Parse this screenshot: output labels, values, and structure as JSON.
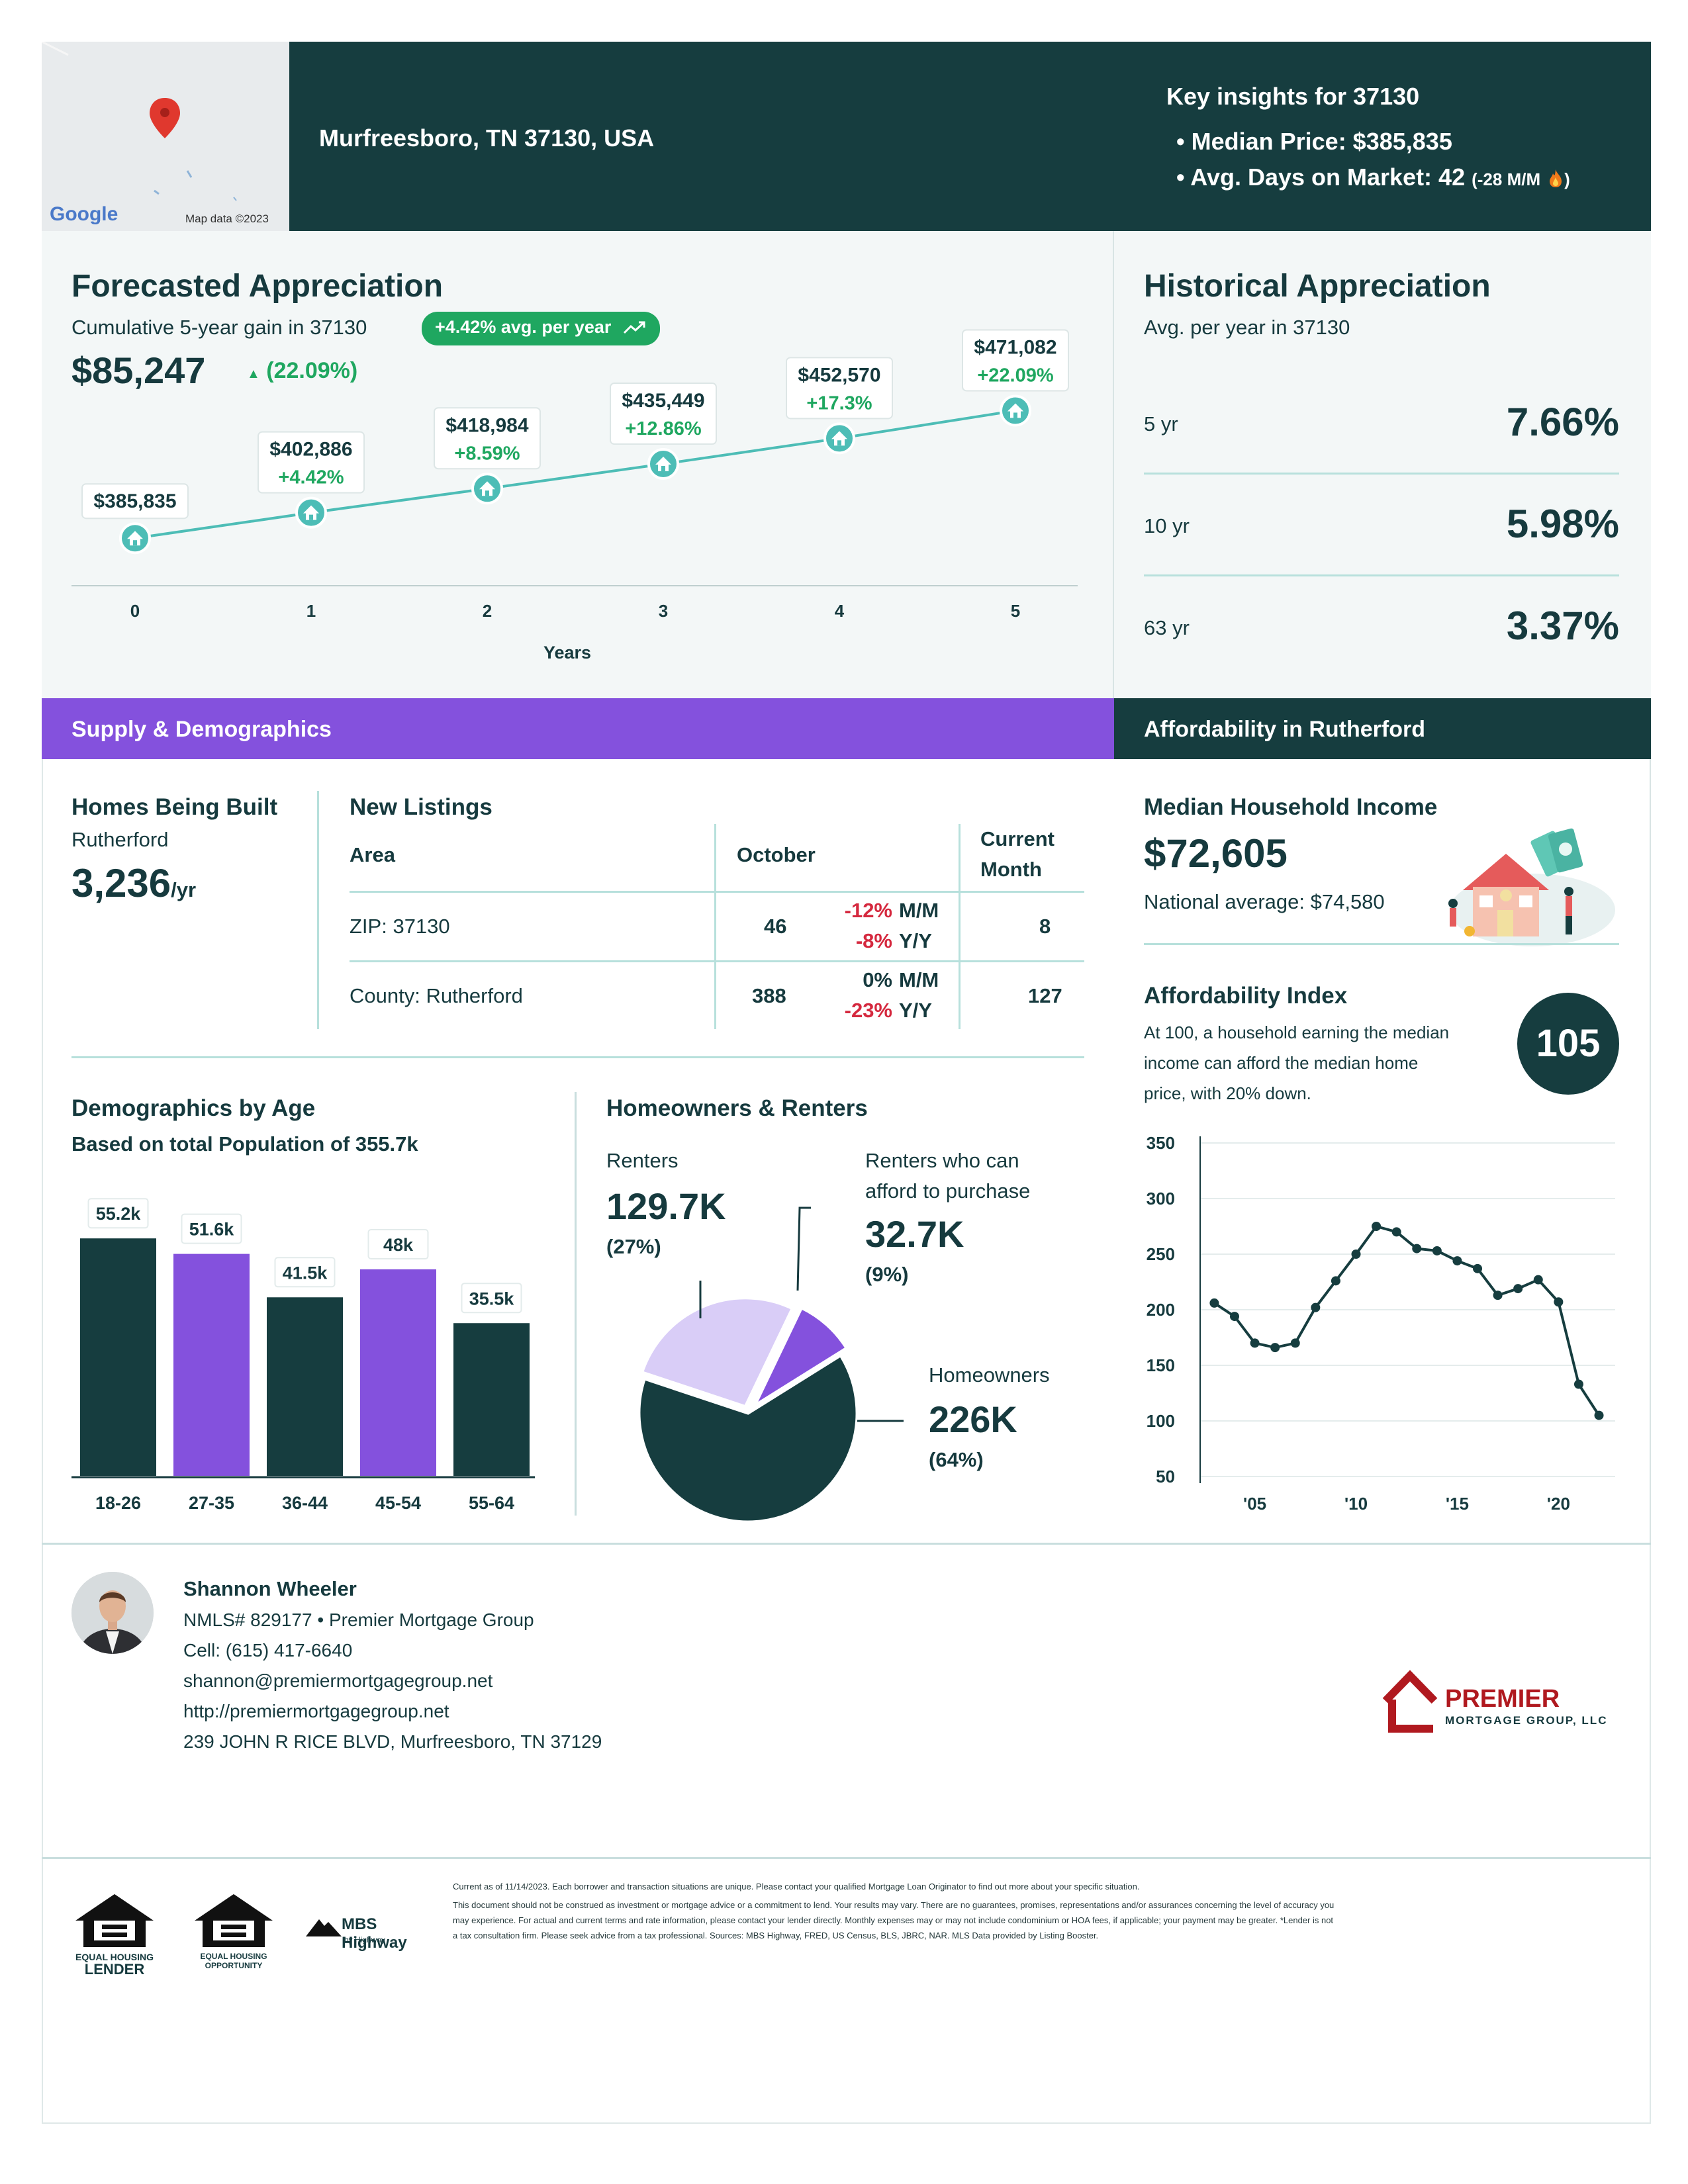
{
  "map": {
    "google_label": "Google",
    "map_data_label": "Map data ©2023",
    "pin_icon": "map-pin-icon"
  },
  "header": {
    "address": "Murfreesboro, TN 37130, USA",
    "key_title": "Key insights for 37130",
    "median_price": "Median Price: $385,835",
    "days_on_market": "Avg. Days on Market: 42",
    "days_change": "(-28 M/M",
    "fire_icon": "fire-icon",
    "colors": {
      "header_bg": "#163d3f"
    }
  },
  "forecast": {
    "title": "Forecasted Appreciation",
    "subtitle": "Cumulative 5-year gain in 37130",
    "pill": "+4.42% avg. per year",
    "gain_amount": "$85,247",
    "gain_pct": "(22.09%)",
    "xlabel": "Years"
  },
  "chart_data": [
    {
      "type": "line",
      "title": "Forecasted Appreciation",
      "xlabel": "Years",
      "x": [
        0,
        1,
        2,
        3,
        4,
        5
      ],
      "values": [
        385835,
        402886,
        418984,
        435449,
        452570,
        471082
      ],
      "value_labels": [
        "$385,835",
        "$402,886",
        "$418,984",
        "$435,449",
        "$452,570",
        "$471,082"
      ],
      "pct_labels": [
        "",
        "+4.42%",
        "+8.59%",
        "+12.86%",
        "+17.3%",
        "+22.09%"
      ],
      "tick_labels": [
        "0",
        "1",
        "2",
        "3",
        "4",
        "5"
      ],
      "ylim": [
        370000,
        485000
      ],
      "line_color": "#4dbdb6",
      "marker_icon": "house-icon"
    },
    {
      "type": "bar",
      "title": "Demographics by Age",
      "categories": [
        "18-26",
        "27-35",
        "36-44",
        "45-54",
        "55-64"
      ],
      "values": [
        55.2,
        51.6,
        41.5,
        48,
        35.5
      ],
      "value_labels": [
        "55.2k",
        "51.6k",
        "41.5k",
        "48k",
        "35.5k"
      ],
      "colors": [
        "#163d3f",
        "#8451dd",
        "#163d3f",
        "#8451dd",
        "#163d3f"
      ],
      "ylim": [
        0,
        60
      ]
    },
    {
      "type": "pie",
      "title": "Homeowners & Renters",
      "slices": [
        {
          "label": "Homeowners",
          "value": 64,
          "color": "#163d3f"
        },
        {
          "label": "Renters",
          "value": 27,
          "color": "#d9cdf7"
        },
        {
          "label": "Renters who can afford to purchase",
          "value": 9,
          "color": "#8451dd"
        }
      ]
    },
    {
      "type": "line",
      "title": "Affordability Index",
      "x": [
        2003,
        2004,
        2005,
        2006,
        2007,
        2008,
        2009,
        2010,
        2011,
        2012,
        2013,
        2014,
        2015,
        2016,
        2017,
        2018,
        2019,
        2020,
        2021,
        2022
      ],
      "values": [
        206,
        194,
        170,
        166,
        170,
        202,
        226,
        250,
        275,
        270,
        255,
        253,
        244,
        237,
        213,
        219,
        227,
        207,
        133,
        105
      ],
      "yticks": [
        "350",
        "300",
        "250",
        "200",
        "150",
        "100",
        "50"
      ],
      "ytick_values": [
        350,
        300,
        250,
        200,
        150,
        100,
        50
      ],
      "xticks": [
        "'05",
        "'10",
        "'15",
        "'20"
      ],
      "xtick_values": [
        2005,
        2010,
        2015,
        2020
      ],
      "ylim": [
        50,
        350
      ],
      "xlim": [
        2002.3,
        2022.8
      ],
      "line_color": "#163d3f"
    }
  ],
  "historical": {
    "title": "Historical Appreciation",
    "subtitle": "Avg. per year in 37130",
    "rows": [
      {
        "label": "5 yr",
        "value": "7.66%"
      },
      {
        "label": "10 yr",
        "value": "5.98%"
      },
      {
        "label": "63 yr",
        "value": "3.37%"
      }
    ]
  },
  "supply": {
    "bar_title": "Supply & Demographics",
    "homes_title": "Homes Being Built",
    "homes_area": "Rutherford",
    "homes_value": "3,236",
    "homes_unit": "/yr",
    "listings_title": "New Listings",
    "col_area": "Area",
    "col_month": "October",
    "col_current_1": "Current",
    "col_current_2": "Month",
    "rows": [
      {
        "area": "ZIP: 37130",
        "value": "46",
        "mm": "-12%",
        "yy": "-8%",
        "mm_lbl": "M/M",
        "yy_lbl": "Y/Y",
        "current": "8"
      },
      {
        "area": "County: Rutherford",
        "value": "388",
        "mm": "0%",
        "yy": "-23%",
        "mm_lbl": "M/M",
        "yy_lbl": "Y/Y",
        "current": "127"
      }
    ],
    "demo_title": "Demographics by Age",
    "demo_subtitle": "Based on total Population of 355.7k",
    "hr_title": "Homeowners & Renters",
    "renters_label": "Renters",
    "renters_value": "129.7K",
    "renters_pct": "(27%)",
    "afford_label_1": "Renters who can",
    "afford_label_2": "afford to purchase",
    "afford_value": "32.7K",
    "afford_pct": "(9%)",
    "owners_label": "Homeowners",
    "owners_value": "226K",
    "owners_pct": "(64%)"
  },
  "afford": {
    "bar_title": "Affordability in Rutherford",
    "income_title": "Median Household Income",
    "income_value": "$72,605",
    "income_national": "National average: $74,580",
    "index_title": "Affordability Index",
    "index_desc_1": "At 100, a household earning the median",
    "index_desc_2": "income can afford the median home",
    "index_desc_3": "price, with 20% down.",
    "index_value": "105"
  },
  "contact": {
    "name": "Shannon Wheeler",
    "nmls": "NMLS# 829177 • Premier Mortgage Group",
    "cell": "Cell: (615) 417-6640",
    "email": "shannon@premiermortgagegroup.net",
    "website": "http://premiermortgagegroup.net",
    "address": "239 JOHN R RICE BLVD, Murfreesboro, TN 37129",
    "logo_big": "PREMIER",
    "logo_small": "MORTGAGE GROUP, LLC"
  },
  "footer": {
    "ehl_1": "EQUAL HOUSING",
    "ehl_2": "LENDER",
    "eho_1": "EQUAL HOUSING",
    "eho_2": "OPPORTUNITY",
    "mbs": "MBS Highway",
    "mbs_sub": "by Highway",
    "disclaimer_1": "Current as of 11/14/2023. Each borrower and transaction situations are unique. Please contact your qualified Mortgage Loan Originator to find out more about your specific situation.",
    "disclaimer_2": "This document should not be construed as investment or mortgage advice or a commitment to lend. Your results may vary. There are no guarantees, promises, representations and/or assurances concerning the level of accuracy you",
    "disclaimer_3": "may experience. For actual and current terms and rate information, please contact your lender directly. Monthly expenses may or may not include condominium or HOA fees, if applicable; your payment may be greater. *Lender is not",
    "disclaimer_4": "a tax consultation firm. Please seek advice from a tax professional. Sources: MBS Highway, FRED, US Census, BLS, JBRC, NAR. MLS Data provided by Listing Booster."
  }
}
